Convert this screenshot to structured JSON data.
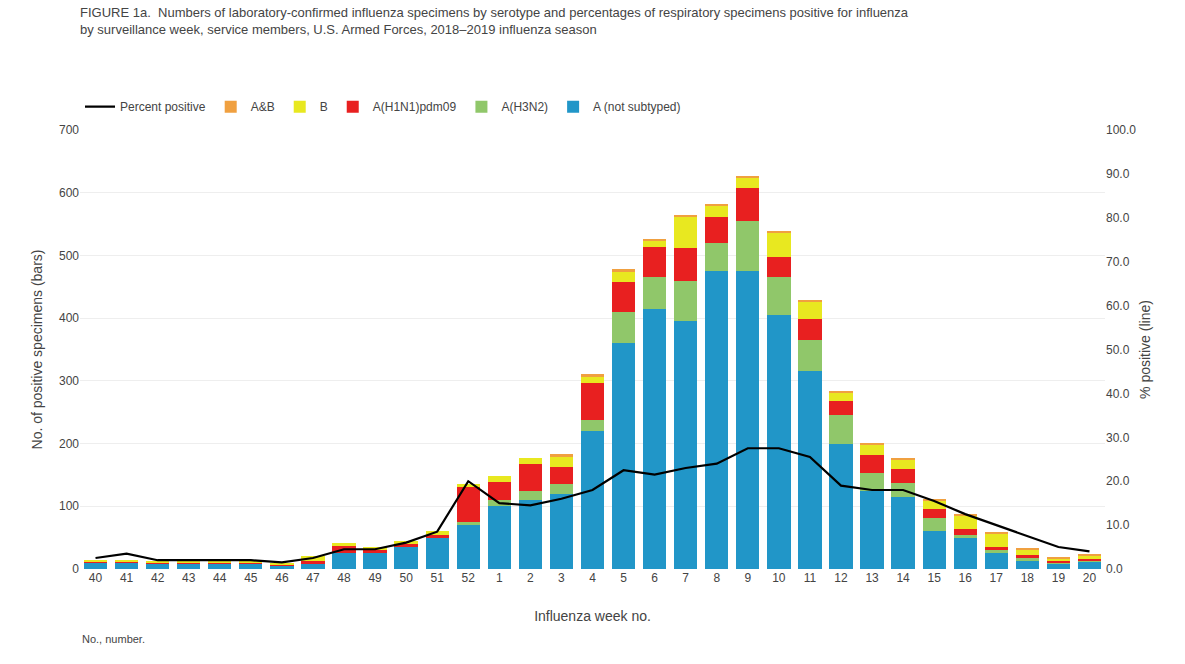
{
  "chart_data": {
    "type": "bar",
    "title": "FIGURE 1a.  Numbers of laboratory-confirmed influenza specimens by serotype and percentages of respiratory specimens positive for influenza",
    "subtitle": "by surveillance week, service members, U.S. Armed Forces, 2018–2019 influenza season",
    "xlabel": "Influenza week no.",
    "ylabel": "No. of positive specimens (bars)",
    "y2label": "% positive (line)",
    "annotations": [
      "No., number."
    ],
    "stacked": true,
    "grid": true,
    "legend": "top left",
    "categories": [
      "40",
      "41",
      "42",
      "43",
      "44",
      "45",
      "46",
      "47",
      "48",
      "49",
      "50",
      "51",
      "52",
      "1",
      "2",
      "3",
      "4",
      "5",
      "6",
      "7",
      "8",
      "9",
      "10",
      "11",
      "12",
      "13",
      "14",
      "15",
      "16",
      "17",
      "18",
      "19",
      "20"
    ],
    "series": [
      {
        "name": "A (not subtyped)",
        "color": "#2196C8",
        "values": [
          10,
          10,
          8,
          8,
          8,
          8,
          5,
          8,
          25,
          25,
          35,
          50,
          70,
          100,
          110,
          120,
          220,
          360,
          415,
          395,
          475,
          475,
          405,
          315,
          200,
          125,
          115,
          60,
          50,
          25,
          12,
          8,
          12
        ]
      },
      {
        "name": "A(H3N2)",
        "color": "#90C76A",
        "values": [
          0,
          0,
          0,
          0,
          0,
          0,
          0,
          0,
          0,
          0,
          0,
          0,
          5,
          10,
          15,
          15,
          18,
          50,
          50,
          65,
          45,
          80,
          60,
          50,
          45,
          28,
          22,
          22,
          5,
          5,
          5,
          2,
          2
        ]
      },
      {
        "name": "A(H1N1)pdm09",
        "color": "#E82020",
        "values": [
          2,
          2,
          2,
          2,
          2,
          2,
          2,
          5,
          12,
          5,
          5,
          5,
          55,
          28,
          42,
          28,
          58,
          48,
          48,
          52,
          42,
          52,
          33,
          33,
          23,
          28,
          23,
          14,
          9,
          5,
          5,
          2,
          2
        ]
      },
      {
        "name": "B",
        "color": "#E8E820",
        "values": [
          2,
          2,
          2,
          2,
          2,
          2,
          2,
          8,
          5,
          5,
          5,
          5,
          5,
          10,
          10,
          15,
          10,
          15,
          10,
          50,
          18,
          18,
          38,
          28,
          14,
          18,
          14,
          14,
          22,
          22,
          9,
          5,
          5
        ]
      },
      {
        "name": "A&B",
        "color": "#F0A040",
        "values": [
          0,
          0,
          0,
          0,
          0,
          0,
          0,
          0,
          0,
          0,
          0,
          0,
          0,
          0,
          0,
          5,
          5,
          5,
          2,
          2,
          2,
          2,
          2,
          2,
          2,
          2,
          2,
          2,
          2,
          2,
          2,
          2,
          2
        ]
      },
      {
        "name": "Percent positive",
        "type": "line",
        "axis": "y2",
        "color": "#000000",
        "values": [
          2.5,
          3.5,
          2.0,
          2.0,
          2.0,
          2.0,
          1.5,
          2.5,
          4.5,
          4.5,
          6.0,
          8.5,
          20.0,
          15.0,
          14.5,
          16.0,
          18.0,
          22.5,
          21.5,
          23.0,
          24.0,
          27.5,
          27.5,
          25.5,
          19.0,
          18.0,
          18.0,
          15.5,
          12.5,
          10.0,
          7.5,
          5.0,
          4.0
        ]
      }
    ],
    "ylim": [
      0,
      700
    ],
    "yticks": [
      0,
      100,
      200,
      300,
      400,
      500,
      600,
      700
    ],
    "y2lim": [
      0,
      100
    ],
    "y2ticks": [
      {
        "value": 0,
        "label": "0.0"
      },
      {
        "value": 10,
        "label": "10.0"
      },
      {
        "value": 20,
        "label": "20.0"
      },
      {
        "value": 30,
        "label": "30.0"
      },
      {
        "value": 40,
        "label": "40.0"
      },
      {
        "value": 50,
        "label": "50.0"
      },
      {
        "value": 60,
        "label": "60.0"
      },
      {
        "value": 70,
        "label": "70.0"
      },
      {
        "value": 80,
        "label": "80.0"
      },
      {
        "value": 90,
        "label": "90.0"
      },
      {
        "value": 100,
        "label": "100.0"
      }
    ]
  }
}
